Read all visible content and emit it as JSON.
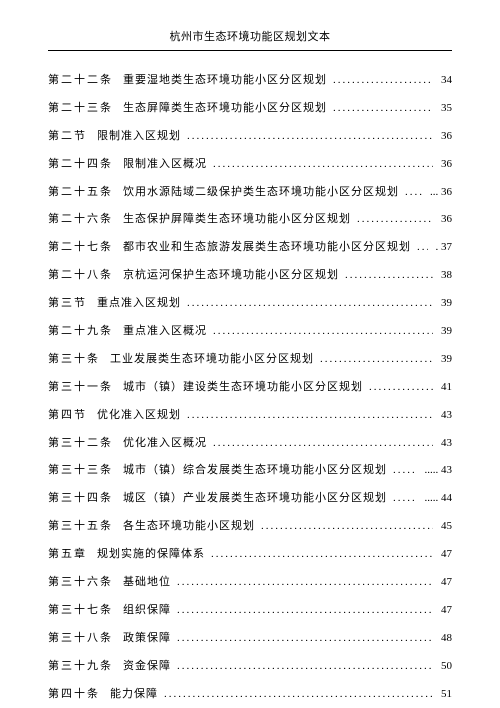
{
  "header": "杭州市生态环境功能区规划文本",
  "entries": [
    {
      "label": "第二十二条",
      "title": "重要湿地类生态环境功能小区分区规划",
      "page": "34",
      "level": 2
    },
    {
      "label": "第二十三条",
      "title": "生态屏障类生态环境功能小区分区规划",
      "page": "35",
      "level": 2
    },
    {
      "label": "第二节",
      "title": "限制准入区规划",
      "page": "36",
      "level": 1
    },
    {
      "label": "第二十四条",
      "title": "限制准入区概况",
      "page": "36",
      "level": 2
    },
    {
      "label": "第二十五条",
      "title": "饮用水源陆域二级保护类生态环境功能小区分区规划",
      "page": "... 36",
      "level": 2
    },
    {
      "label": "第二十六条",
      "title": "生态保护屏障类生态环境功能小区分区规划",
      "page": "36",
      "level": 2
    },
    {
      "label": "第二十七条",
      "title": "都市农业和生态旅游发展类生态环境功能小区分区规划",
      "page": ". 37",
      "level": 2
    },
    {
      "label": "第二十八条",
      "title": "京杭运河保护生态环境功能小区分区规划",
      "page": "38",
      "level": 2
    },
    {
      "label": "第三节",
      "title": "重点准入区规划",
      "page": "39",
      "level": 1
    },
    {
      "label": "第二十九条",
      "title": "重点准入区概况",
      "page": "39",
      "level": 2
    },
    {
      "label": "第三十条",
      "title": "工业发展类生态环境功能小区分区规划",
      "page": "39",
      "level": 2
    },
    {
      "label": "第三十一条",
      "title": "城市（镇）建设类生态环境功能小区分区规划",
      "page": "41",
      "level": 2
    },
    {
      "label": "第四节",
      "title": "优化准入区规划",
      "page": "43",
      "level": 1
    },
    {
      "label": "第三十二条",
      "title": "优化准入区概况",
      "page": "43",
      "level": 2
    },
    {
      "label": "第三十三条",
      "title": "城市（镇）综合发展类生态环境功能小区分区规划",
      "page": "..... 43",
      "level": 2
    },
    {
      "label": "第三十四条",
      "title": "城区（镇）产业发展类生态环境功能小区分区规划",
      "page": "..... 44",
      "level": 2
    },
    {
      "label": "第三十五条",
      "title": "各生态环境功能小区规划",
      "page": "45",
      "level": 2
    },
    {
      "label": "第五章",
      "title": "规划实施的保障体系",
      "page": "47",
      "level": 1
    },
    {
      "label": "第三十六条",
      "title": "基础地位",
      "page": "47",
      "level": 2
    },
    {
      "label": "第三十七条",
      "title": "组织保障",
      "page": "47",
      "level": 2
    },
    {
      "label": "第三十八条",
      "title": "政策保障",
      "page": "48",
      "level": 2
    },
    {
      "label": "第三十九条",
      "title": "资金保障",
      "page": "50",
      "level": 2
    },
    {
      "label": "第四十条",
      "title": "能力保障",
      "page": "51",
      "level": 2
    }
  ]
}
